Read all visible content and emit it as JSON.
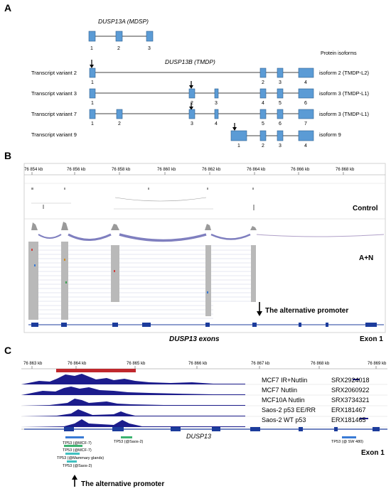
{
  "panelA": {
    "label": "A",
    "gene_a_title": "DUSP13A (MDSP)",
    "gene_a_exons": [
      "1",
      "2",
      "3"
    ],
    "gene_b_title": "DUSP13B (TMDP)",
    "protein_isoforms_label": "Protein isoforms",
    "transcripts": [
      {
        "name": "Transcript variant 2",
        "isoform": "isoform 2 (TMDP-L2)",
        "exons": [
          "1",
          "2",
          "3",
          "4"
        ]
      },
      {
        "name": "Transcript variant 3",
        "isoform": "isoform 3 (TMDP-L1)",
        "exons": [
          "1",
          "2",
          "3",
          "4",
          "5",
          "6"
        ]
      },
      {
        "name": "Transcript variant 7",
        "isoform": "isoform 3 (TMDP-L1)",
        "exons": [
          "1",
          "2",
          "3",
          "4",
          "5",
          "6",
          "7"
        ]
      },
      {
        "name": "Transcript variant 9",
        "isoform": "isoform 9",
        "exons": [
          "1",
          "2",
          "3",
          "4"
        ]
      }
    ],
    "exon_color": "#5b9bd5"
  },
  "panelB": {
    "label": "B",
    "ticks": [
      "76 854 kb",
      "76 856 kb",
      "76 858 kb",
      "76 860 kb",
      "76 862 kb",
      "76 864 kb",
      "76 866 kb",
      "76 868 kb"
    ],
    "control_label": "Control",
    "an_label": "A+N",
    "promoter_label": "The alternative promoter",
    "exons_label": "DUSP13 exons",
    "exon1_label": "Exon 1",
    "coverage_color": "#9a9a9a",
    "junction_color": "#7f7fbf"
  },
  "panelC": {
    "label": "C",
    "ticks": [
      "76 863 kb",
      "76 864 kb",
      "76 865 kb",
      "76 866 kb",
      "76 867 kb",
      "76 868 kb",
      "76 869 kb"
    ],
    "tracks": [
      {
        "name": "MCF7 IR+Nutlin",
        "id": "SRX2924018"
      },
      {
        "name": "MCF7 Nutlin",
        "id": "SRX2060922"
      },
      {
        "name": "MCF10A Nutlin",
        "id": "SRX3734321"
      },
      {
        "name": "Saos-2  p53 EE/RR",
        "id": "ERX181467"
      },
      {
        "name": "Saos-2 WT p53",
        "id": "ERX181465"
      }
    ],
    "gene_label": "DUSP13",
    "sites": [
      "TP53 (@MCF-7)",
      "TP53 (@MCF-7)",
      "TP53 (@Mammary glands)",
      "TP53 (@Saos-2)",
      "TP53 (@Saos-2)",
      "TP53 (@ SW 480)"
    ],
    "exon1_label": "Exon 1",
    "promoter_label": "The alternative promoter",
    "signal_color": "#1c1c8c",
    "highlight_color": "#c0282d",
    "site_color": "#3cb371"
  }
}
